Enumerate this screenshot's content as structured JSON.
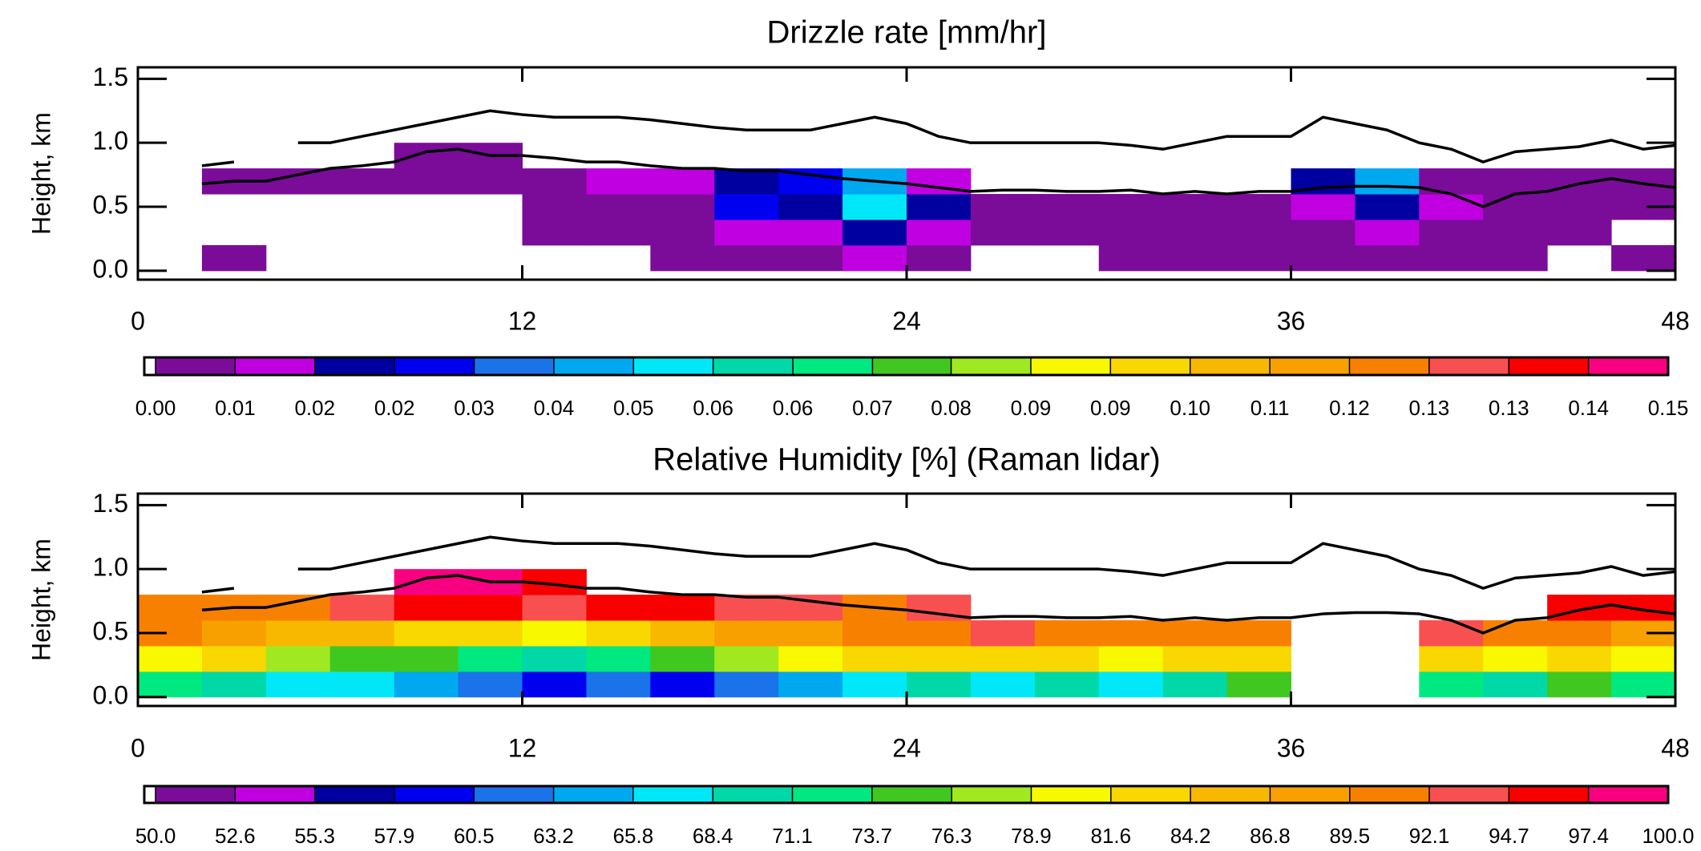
{
  "chart_data": [
    {
      "type": "heatmap",
      "title": "Drizzle rate [mm/hr]",
      "ylabel": "Height, km",
      "xlim": [
        0,
        48
      ],
      "ylim": [
        -0.07,
        1.59
      ],
      "xticks": [
        0,
        12,
        24,
        36,
        48
      ],
      "yticks": [
        {
          "value": 0,
          "label": "0.0"
        },
        {
          "value": 0.5,
          "label": "0.5"
        },
        {
          "value": 1,
          "label": "1.0"
        },
        {
          "value": 1.5,
          "label": "1.5"
        }
      ],
      "xbins": [
        0,
        2,
        4,
        6,
        8,
        10,
        12,
        14,
        16,
        18,
        20,
        22,
        24,
        26,
        28,
        30,
        32,
        34,
        36,
        38,
        40,
        42,
        44,
        46,
        48
      ],
      "ybins": [
        0,
        0.2,
        0.4,
        0.6,
        0.8,
        1.0
      ],
      "z": [
        [
          null,
          0.003,
          null,
          null,
          null,
          null,
          null,
          null,
          0.003,
          0.005,
          0.003,
          0.01,
          0.003,
          null,
          null,
          0.003,
          0.003,
          0.003,
          0.003,
          0.003,
          0.003,
          0.003,
          null,
          0.003
        ],
        [
          null,
          null,
          null,
          null,
          null,
          null,
          0.003,
          0.003,
          0.003,
          0.01,
          0.01,
          0.02,
          0.01,
          0.003,
          0.003,
          0.003,
          0.003,
          0.003,
          0.005,
          0.01,
          0.005,
          0.003,
          0.003,
          null
        ],
        [
          null,
          null,
          null,
          null,
          null,
          null,
          0.003,
          0.005,
          0.005,
          0.03,
          0.02,
          0.05,
          0.02,
          0.003,
          0.003,
          0.003,
          0.003,
          0.003,
          0.01,
          0.02,
          0.01,
          0.003,
          0.003,
          0.003
        ],
        [
          null,
          0.003,
          0.003,
          0.003,
          0.003,
          0.003,
          0.003,
          0.01,
          0.01,
          0.02,
          0.03,
          0.04,
          0.01,
          null,
          null,
          null,
          null,
          null,
          0.02,
          0.04,
          0.003,
          0.003,
          0.003,
          0.003
        ],
        [
          null,
          null,
          null,
          null,
          0.003,
          0.003,
          null,
          null,
          null,
          null,
          null,
          null,
          null,
          null,
          null,
          null,
          null,
          null,
          null,
          null,
          null,
          null,
          null,
          null
        ]
      ],
      "colorbar": {
        "ticks": [
          {
            "value": 0,
            "label": "0.00"
          },
          {
            "value": 0.0079,
            "label": "0.01"
          },
          {
            "value": 0.0158,
            "label": "0.02"
          },
          {
            "value": 0.0237,
            "label": "0.02"
          },
          {
            "value": 0.0316,
            "label": "0.03"
          },
          {
            "value": 0.0395,
            "label": "0.04"
          },
          {
            "value": 0.0474,
            "label": "0.05"
          },
          {
            "value": 0.0553,
            "label": "0.06"
          },
          {
            "value": 0.0632,
            "label": "0.06"
          },
          {
            "value": 0.0711,
            "label": "0.07"
          },
          {
            "value": 0.0789,
            "label": "0.08"
          },
          {
            "value": 0.0868,
            "label": "0.09"
          },
          {
            "value": 0.0947,
            "label": "0.09"
          },
          {
            "value": 0.1026,
            "label": "0.10"
          },
          {
            "value": 0.1105,
            "label": "0.11"
          },
          {
            "value": 0.1184,
            "label": "0.12"
          },
          {
            "value": 0.1263,
            "label": "0.13"
          },
          {
            "value": 0.1342,
            "label": "0.13"
          },
          {
            "value": 0.1421,
            "label": "0.14"
          },
          {
            "value": 0.15,
            "label": "0.15"
          }
        ],
        "colors": [
          "#7a0c99",
          "#c000e0",
          "#0000a0",
          "#0000f0",
          "#1a73e8",
          "#00a8f0",
          "#00e8f8",
          "#00d8a8",
          "#00e880",
          "#40c820",
          "#a0e820",
          "#f8f800",
          "#f8d800",
          "#f8b800",
          "#f8a000",
          "#f88000",
          "#f85050",
          "#f80000",
          "#f80080"
        ]
      },
      "lines": {
        "x": [
          0,
          1,
          2,
          3,
          4,
          5,
          6,
          7,
          8,
          9,
          10,
          11,
          12,
          13,
          14,
          15,
          16,
          17,
          18,
          19,
          20,
          21,
          22,
          23,
          24,
          25,
          26,
          27,
          28,
          29,
          30,
          31,
          32,
          33,
          34,
          35,
          36,
          37,
          38,
          39,
          40,
          41,
          42,
          43,
          44,
          45,
          46,
          47,
          48
        ],
        "series": [
          {
            "color": "#000000",
            "values": [
              0.9,
              null,
              0.82,
              0.85,
              null,
              1.0,
              1.0,
              1.05,
              1.1,
              1.15,
              1.2,
              1.25,
              1.22,
              1.2,
              1.2,
              1.2,
              1.18,
              1.15,
              1.12,
              1.1,
              1.1,
              1.1,
              1.15,
              1.2,
              1.15,
              1.05,
              1.0,
              1.0,
              1.0,
              1.0,
              1.0,
              0.98,
              0.95,
              1.0,
              1.05,
              1.05,
              1.05,
              1.2,
              1.15,
              1.1,
              1.0,
              0.95,
              0.85,
              0.93,
              0.95,
              0.97,
              1.02,
              0.95,
              0.98
            ]
          },
          {
            "color": "#000000",
            "values": [
              0.78,
              null,
              0.68,
              0.7,
              0.7,
              0.75,
              0.8,
              0.82,
              0.85,
              0.93,
              0.95,
              0.9,
              0.9,
              0.88,
              0.85,
              0.85,
              0.82,
              0.8,
              0.8,
              0.78,
              0.78,
              0.75,
              0.72,
              0.7,
              0.68,
              0.65,
              0.62,
              0.63,
              0.63,
              0.62,
              0.62,
              0.63,
              0.6,
              0.62,
              0.6,
              0.62,
              0.62,
              0.65,
              0.66,
              0.66,
              0.65,
              0.6,
              0.5,
              0.6,
              0.62,
              0.68,
              0.72,
              0.68,
              0.65
            ]
          }
        ]
      }
    },
    {
      "type": "heatmap",
      "title": "Relative Humidity [%] (Raman lidar)",
      "ylabel": "Height, km",
      "xlim": [
        0,
        48
      ],
      "ylim": [
        -0.07,
        1.59
      ],
      "xticks": [
        0,
        12,
        24,
        36,
        48
      ],
      "yticks": [
        {
          "value": 0,
          "label": "0.0"
        },
        {
          "value": 0.5,
          "label": "0.5"
        },
        {
          "value": 1,
          "label": "1.0"
        },
        {
          "value": 1.5,
          "label": "1.5"
        }
      ],
      "xbins": [
        0,
        2,
        4,
        6,
        8,
        10,
        12,
        14,
        16,
        18,
        20,
        22,
        24,
        26,
        28,
        30,
        32,
        34,
        36,
        38,
        40,
        42,
        44,
        46,
        48
      ],
      "ybins": [
        0,
        0.2,
        0.4,
        0.6,
        0.8,
        1.0
      ],
      "z": [
        [
          72,
          70,
          68,
          66,
          64,
          62,
          60,
          62,
          60,
          62,
          64,
          66,
          70,
          66,
          70,
          68,
          70,
          74,
          null,
          null,
          72,
          70,
          74,
          72
        ],
        [
          80,
          82,
          78,
          76,
          74,
          72,
          70,
          72,
          74,
          78,
          80,
          82,
          84,
          84,
          82,
          80,
          82,
          84,
          null,
          null,
          82,
          80,
          84,
          80
        ],
        [
          90,
          88,
          86,
          86,
          84,
          82,
          80,
          84,
          86,
          88,
          88,
          90,
          92,
          94,
          92,
          90,
          92,
          92,
          null,
          null,
          94,
          92,
          90,
          88
        ],
        [
          92,
          90,
          90,
          94,
          96,
          96,
          94,
          96,
          96,
          94,
          94,
          92,
          94,
          null,
          null,
          null,
          null,
          null,
          null,
          null,
          null,
          null,
          95,
          95
        ],
        [
          null,
          null,
          null,
          null,
          98,
          98,
          96,
          null,
          null,
          null,
          null,
          null,
          null,
          null,
          null,
          null,
          null,
          null,
          null,
          null,
          null,
          null,
          null,
          null
        ]
      ],
      "colorbar": {
        "ticks": [
          {
            "value": 50,
            "label": "50.0"
          },
          {
            "value": 52.632,
            "label": "52.6"
          },
          {
            "value": 55.263,
            "label": "55.3"
          },
          {
            "value": 57.895,
            "label": "57.9"
          },
          {
            "value": 60.526,
            "label": "60.5"
          },
          {
            "value": 63.158,
            "label": "63.2"
          },
          {
            "value": 65.789,
            "label": "65.8"
          },
          {
            "value": 68.421,
            "label": "68.4"
          },
          {
            "value": 71.053,
            "label": "71.1"
          },
          {
            "value": 73.684,
            "label": "73.7"
          },
          {
            "value": 76.316,
            "label": "76.3"
          },
          {
            "value": 78.947,
            "label": "78.9"
          },
          {
            "value": 81.579,
            "label": "81.6"
          },
          {
            "value": 84.211,
            "label": "84.2"
          },
          {
            "value": 86.842,
            "label": "86.8"
          },
          {
            "value": 89.474,
            "label": "89.5"
          },
          {
            "value": 92.105,
            "label": "92.1"
          },
          {
            "value": 94.737,
            "label": "94.7"
          },
          {
            "value": 97.368,
            "label": "97.4"
          },
          {
            "value": 100,
            "label": "100.0"
          }
        ],
        "colors": [
          "#7a0c99",
          "#c000e0",
          "#0000a0",
          "#0000f0",
          "#1a73e8",
          "#00a8f0",
          "#00e8f8",
          "#00d8a8",
          "#00e880",
          "#40c820",
          "#a0e820",
          "#f8f800",
          "#f8d800",
          "#f8b800",
          "#f8a000",
          "#f88000",
          "#f85050",
          "#f80000",
          "#f80080"
        ]
      },
      "lines": {
        "x": [
          0,
          1,
          2,
          3,
          4,
          5,
          6,
          7,
          8,
          9,
          10,
          11,
          12,
          13,
          14,
          15,
          16,
          17,
          18,
          19,
          20,
          21,
          22,
          23,
          24,
          25,
          26,
          27,
          28,
          29,
          30,
          31,
          32,
          33,
          34,
          35,
          36,
          37,
          38,
          39,
          40,
          41,
          42,
          43,
          44,
          45,
          46,
          47,
          48
        ],
        "series": [
          {
            "color": "#000000",
            "values": [
              0.9,
              null,
              0.82,
              0.85,
              null,
              1.0,
              1.0,
              1.05,
              1.1,
              1.15,
              1.2,
              1.25,
              1.22,
              1.2,
              1.2,
              1.2,
              1.18,
              1.15,
              1.12,
              1.1,
              1.1,
              1.1,
              1.15,
              1.2,
              1.15,
              1.05,
              1.0,
              1.0,
              1.0,
              1.0,
              1.0,
              0.98,
              0.95,
              1.0,
              1.05,
              1.05,
              1.05,
              1.2,
              1.15,
              1.1,
              1.0,
              0.95,
              0.85,
              0.93,
              0.95,
              0.97,
              1.02,
              0.95,
              0.98
            ]
          },
          {
            "color": "#000000",
            "values": [
              0.78,
              null,
              0.68,
              0.7,
              0.7,
              0.75,
              0.8,
              0.82,
              0.85,
              0.93,
              0.95,
              0.9,
              0.9,
              0.88,
              0.85,
              0.85,
              0.82,
              0.8,
              0.8,
              0.78,
              0.78,
              0.75,
              0.72,
              0.7,
              0.68,
              0.65,
              0.62,
              0.63,
              0.63,
              0.62,
              0.62,
              0.63,
              0.6,
              0.62,
              0.6,
              0.62,
              0.62,
              0.65,
              0.66,
              0.66,
              0.65,
              0.6,
              0.5,
              0.6,
              0.62,
              0.68,
              0.72,
              0.68,
              0.65
            ]
          }
        ]
      }
    }
  ]
}
